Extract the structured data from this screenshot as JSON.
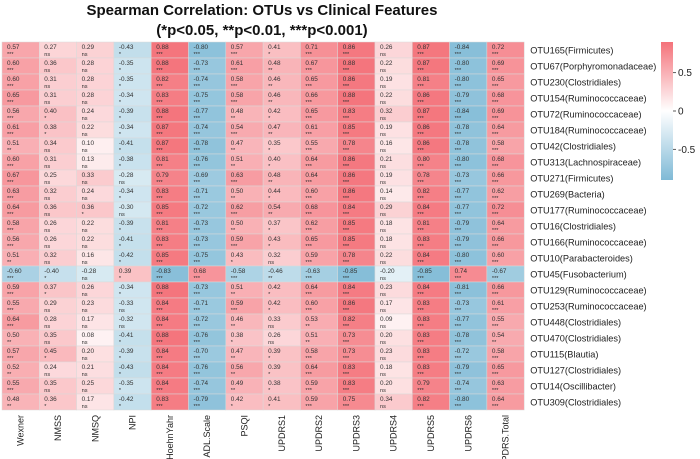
{
  "chart_data": {
    "type": "heatmap",
    "title": "Spearman Correlation: OTUs vs Clinical Features",
    "subtitle": "(*p<0.05, **p<0.01, ***p<0.001)",
    "columns": [
      "Wexner",
      "NMSS",
      "NMSQ",
      "NPI",
      "HoehnYahr",
      "ADL.Scale",
      "PSQI",
      "UPDRS1",
      "UPDRS2",
      "UPDRS3",
      "UPDRS4",
      "UPDRS5",
      "UPDRS6",
      "UPDRS.Total"
    ],
    "rows": [
      "OTU165(Firmicutes)",
      "OTU67(Porphyromonadaceae)",
      "OTU230(Clostridiales)",
      "OTU154(Ruminococcaceae)",
      "OTU72(Ruminococcaceae)",
      "OTU184(Ruminococcaceae)",
      "OTU42(Clostridiales)",
      "OTU313(Lachnospiraceae)",
      "OTU271(Firmicutes)",
      "OTU269(Bacteria)",
      "OTU177(Ruminococcaceae)",
      "OTU16(Clostridiales)",
      "OTU166(Ruminococcaceae)",
      "OTU10(Parabacteroides)",
      "OTU45(Fusobacterium)",
      "OTU129(Ruminococcaceae)",
      "OTU253(Ruminococcaceae)",
      "OTU448(Clostridiales)",
      "OTU470(Clostridiales)",
      "OTU115(Blautia)",
      "OTU127(Clostridiales)",
      "OTU14(Oscillibacter)",
      "OTU309(Clostridiales)"
    ],
    "values": [
      [
        0.57,
        0.27,
        0.29,
        -0.43,
        0.88,
        -0.8,
        0.57,
        0.41,
        0.71,
        0.86,
        0.26,
        0.87,
        -0.84,
        0.72
      ],
      [
        0.6,
        0.36,
        0.28,
        -0.35,
        0.88,
        -0.73,
        0.61,
        0.48,
        0.67,
        0.88,
        0.22,
        0.87,
        -0.8,
        0.69
      ],
      [
        0.6,
        0.31,
        0.28,
        -0.35,
        0.82,
        -0.74,
        0.58,
        0.46,
        0.65,
        0.86,
        0.19,
        0.81,
        -0.8,
        0.65
      ],
      [
        0.65,
        0.31,
        0.28,
        -0.34,
        0.83,
        -0.75,
        0.58,
        0.46,
        0.66,
        0.88,
        0.22,
        0.86,
        -0.79,
        0.68
      ],
      [
        0.56,
        0.4,
        0.24,
        -0.39,
        0.88,
        -0.77,
        0.48,
        0.42,
        0.65,
        0.83,
        0.32,
        0.87,
        -0.84,
        0.69
      ],
      [
        0.61,
        0.38,
        0.22,
        -0.34,
        0.87,
        -0.74,
        0.54,
        0.47,
        0.61,
        0.85,
        0.19,
        0.86,
        -0.78,
        0.64
      ],
      [
        0.51,
        0.34,
        0.1,
        -0.41,
        0.87,
        -0.78,
        0.47,
        0.35,
        0.55,
        0.78,
        0.16,
        0.86,
        -0.78,
        0.58
      ],
      [
        0.6,
        0.31,
        0.13,
        -0.38,
        0.81,
        -0.76,
        0.51,
        0.4,
        0.64,
        0.86,
        0.21,
        0.8,
        -0.8,
        0.68
      ],
      [
        0.67,
        0.25,
        0.33,
        -0.28,
        0.79,
        -0.69,
        0.63,
        0.48,
        0.64,
        0.86,
        0.19,
        0.78,
        -0.73,
        0.66
      ],
      [
        0.63,
        0.32,
        0.24,
        -0.34,
        0.83,
        -0.71,
        0.5,
        0.44,
        0.6,
        0.86,
        0.14,
        0.82,
        -0.77,
        0.62
      ],
      [
        0.64,
        0.36,
        0.36,
        -0.3,
        0.85,
        -0.72,
        0.62,
        0.54,
        0.68,
        0.84,
        0.29,
        0.84,
        -0.77,
        0.72
      ],
      [
        0.58,
        0.26,
        0.22,
        -0.39,
        0.81,
        -0.73,
        0.5,
        0.37,
        0.62,
        0.85,
        0.18,
        0.81,
        -0.79,
        0.64
      ],
      [
        0.56,
        0.26,
        0.22,
        -0.41,
        0.83,
        -0.73,
        0.59,
        0.43,
        0.65,
        0.85,
        0.18,
        0.83,
        -0.79,
        0.66
      ],
      [
        0.51,
        0.32,
        0.16,
        -0.42,
        0.85,
        -0.75,
        0.43,
        0.32,
        0.59,
        0.78,
        0.22,
        0.84,
        -0.8,
        0.6
      ],
      [
        -0.6,
        -0.4,
        -0.28,
        0.39,
        -0.83,
        0.68,
        -0.58,
        -0.46,
        -0.63,
        -0.85,
        -0.2,
        -0.85,
        0.74,
        -0.67
      ],
      [
        0.59,
        0.37,
        0.26,
        -0.34,
        0.88,
        -0.73,
        0.51,
        0.42,
        0.64,
        0.84,
        0.23,
        0.84,
        -0.81,
        0.66
      ],
      [
        0.55,
        0.29,
        0.23,
        -0.33,
        0.84,
        -0.71,
        0.59,
        0.42,
        0.6,
        0.86,
        0.17,
        0.83,
        -0.73,
        0.61
      ],
      [
        0.64,
        0.28,
        0.17,
        -0.32,
        0.84,
        -0.72,
        0.46,
        0.33,
        0.53,
        0.82,
        0.09,
        0.83,
        -0.77,
        0.55
      ],
      [
        0.5,
        0.35,
        0.08,
        -0.41,
        0.88,
        -0.76,
        0.38,
        0.26,
        0.51,
        0.73,
        0.2,
        0.83,
        -0.78,
        0.54
      ],
      [
        0.57,
        0.45,
        0.2,
        -0.39,
        0.84,
        -0.7,
        0.47,
        0.39,
        0.58,
        0.73,
        0.23,
        0.83,
        -0.72,
        0.58
      ],
      [
        0.52,
        0.24,
        0.21,
        -0.43,
        0.84,
        -0.76,
        0.56,
        0.39,
        0.64,
        0.83,
        0.18,
        0.83,
        -0.79,
        0.65
      ],
      [
        0.55,
        0.35,
        0.25,
        -0.35,
        0.84,
        -0.74,
        0.49,
        0.38,
        0.59,
        0.83,
        0.2,
        0.79,
        -0.74,
        0.63
      ],
      [
        0.48,
        0.36,
        0.17,
        -0.42,
        0.83,
        -0.79,
        0.42,
        0.41,
        0.59,
        0.75,
        0.34,
        0.82,
        -0.8,
        0.64
      ]
    ],
    "significance": [
      [
        "***",
        "ns",
        "ns",
        "*",
        "***",
        "***",
        "***",
        "*",
        "***",
        "***",
        "ns",
        "***",
        "***",
        "***"
      ],
      [
        "***",
        "ns",
        "ns",
        "*",
        "***",
        "***",
        "***",
        "**",
        "***",
        "***",
        "ns",
        "***",
        "***",
        "***"
      ],
      [
        "***",
        "ns",
        "ns",
        "*",
        "***",
        "***",
        "***",
        "**",
        "***",
        "***",
        "ns",
        "***",
        "***",
        "***"
      ],
      [
        "***",
        "ns",
        "ns",
        "*",
        "***",
        "***",
        "***",
        "**",
        "***",
        "***",
        "ns",
        "***",
        "***",
        "***"
      ],
      [
        "***",
        "*",
        "ns",
        "*",
        "***",
        "***",
        "**",
        "*",
        "***",
        "***",
        "ns",
        "***",
        "***",
        "***"
      ],
      [
        "***",
        "*",
        "ns",
        "*",
        "***",
        "***",
        "***",
        "**",
        "***",
        "***",
        "ns",
        "***",
        "***",
        "***"
      ],
      [
        "**",
        "ns",
        "ns",
        "*",
        "***",
        "***",
        "**",
        "*",
        "***",
        "***",
        "ns",
        "***",
        "***",
        "***"
      ],
      [
        "***",
        "ns",
        "ns",
        "*",
        "***",
        "***",
        "**",
        "*",
        "***",
        "***",
        "ns",
        "***",
        "***",
        "***"
      ],
      [
        "***",
        "ns",
        "ns",
        "ns",
        "***",
        "***",
        "***",
        "**",
        "***",
        "***",
        "ns",
        "***",
        "***",
        "***"
      ],
      [
        "***",
        "ns",
        "ns",
        "*",
        "***",
        "***",
        "**",
        "*",
        "***",
        "***",
        "ns",
        "***",
        "***",
        "***"
      ],
      [
        "***",
        "ns",
        "*",
        "ns",
        "***",
        "***",
        "***",
        "**",
        "***",
        "***",
        "ns",
        "***",
        "***",
        "***"
      ],
      [
        "***",
        "ns",
        "ns",
        "*",
        "***",
        "***",
        "**",
        "*",
        "***",
        "***",
        "ns",
        "***",
        "***",
        "***"
      ],
      [
        "***",
        "ns",
        "ns",
        "*",
        "***",
        "***",
        "***",
        "*",
        "***",
        "***",
        "ns",
        "***",
        "***",
        "***"
      ],
      [
        "**",
        "ns",
        "ns",
        "*",
        "***",
        "***",
        "*",
        "ns",
        "***",
        "***",
        "ns",
        "***",
        "***",
        "***"
      ],
      [
        "***",
        "*",
        "ns",
        "*",
        "***",
        "***",
        "***",
        "**",
        "***",
        "***",
        "ns",
        "***",
        "***",
        "***"
      ],
      [
        "***",
        "*",
        "ns",
        "*",
        "***",
        "***",
        "**",
        "*",
        "***",
        "***",
        "ns",
        "***",
        "***",
        "***"
      ],
      [
        "***",
        "ns",
        "ns",
        "ns",
        "***",
        "***",
        "***",
        "*",
        "***",
        "***",
        "ns",
        "***",
        "***",
        "***"
      ],
      [
        "***",
        "ns",
        "ns",
        "ns",
        "***",
        "***",
        "**",
        "ns",
        "**",
        "***",
        "ns",
        "***",
        "***",
        "***"
      ],
      [
        "**",
        "ns",
        "ns",
        "*",
        "***",
        "***",
        "*",
        "ns",
        "**",
        "***",
        "ns",
        "***",
        "***",
        "**"
      ],
      [
        "***",
        "*",
        "ns",
        "*",
        "***",
        "***",
        "**",
        "*",
        "***",
        "***",
        "ns",
        "***",
        "***",
        "***"
      ],
      [
        "**",
        "ns",
        "ns",
        "*",
        "***",
        "***",
        "**",
        "*",
        "***",
        "***",
        "ns",
        "***",
        "***",
        "***"
      ],
      [
        "***",
        "ns",
        "ns",
        "*",
        "***",
        "***",
        "**",
        "*",
        "***",
        "***",
        "ns",
        "***",
        "***",
        "***"
      ],
      [
        "**",
        "*",
        "ns",
        "*",
        "***",
        "***",
        "*",
        "*",
        "***",
        "***",
        "ns",
        "***",
        "***",
        "***"
      ]
    ],
    "colorbar": {
      "ticks": [
        0.5,
        0,
        -0.5
      ],
      "tick_labels": [
        "0.5",
        "0",
        "-0.5"
      ],
      "range": [
        -0.9,
        0.9
      ]
    },
    "colors": {
      "positive": "#f4727a",
      "negative": "#7fbad6",
      "neutral": "#ffffff",
      "border": "#d9d9d9"
    }
  }
}
